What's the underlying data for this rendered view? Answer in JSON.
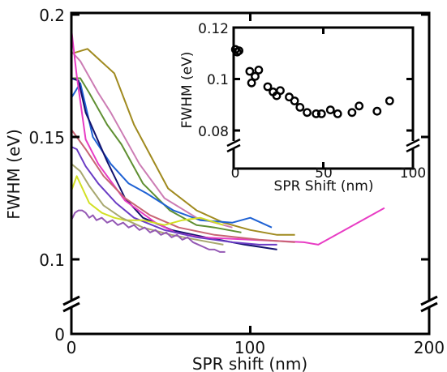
{
  "chart_data": [
    {
      "type": "line",
      "xlabel": "SPR shift (nm)",
      "ylabel": "FWHM (eV)",
      "xlim": [
        0,
        200
      ],
      "ylim": [
        0,
        0.2
      ],
      "axis_break": "y between 0 and 0.1",
      "x_ticks": [
        "0",
        "100",
        "200"
      ],
      "y_ticks": [
        "0",
        "0.1",
        "0.15",
        "0.2"
      ],
      "legend": "none",
      "grid": false,
      "series": [
        {
          "color": "#a08a1f",
          "x": [
            0,
            9,
            24,
            35,
            54,
            70,
            85,
            100,
            115,
            125
          ],
          "y": [
            0.184,
            0.186,
            0.176,
            0.155,
            0.129,
            0.12,
            0.115,
            0.112,
            0.11,
            0.11
          ]
        },
        {
          "color": "#cc7cb4",
          "x": [
            0,
            5,
            15,
            22,
            38,
            52,
            70,
            90
          ],
          "y": [
            0.185,
            0.181,
            0.168,
            0.16,
            0.139,
            0.125,
            0.117,
            0.113
          ]
        },
        {
          "color": "#5f8f32",
          "x": [
            0,
            5,
            10,
            20,
            28,
            40,
            55,
            70,
            80,
            95
          ],
          "y": [
            0.174,
            0.174,
            0.168,
            0.155,
            0.147,
            0.131,
            0.12,
            0.114,
            0.113,
            0.111
          ]
        },
        {
          "color": "#1f62d4",
          "x": [
            0,
            5,
            12,
            22,
            32,
            42,
            57,
            72,
            90,
            100,
            112
          ],
          "y": [
            0.166,
            0.172,
            0.15,
            0.139,
            0.131,
            0.127,
            0.12,
            0.116,
            0.115,
            0.117,
            0.113
          ]
        },
        {
          "color": "#12126e",
          "x": [
            0,
            4,
            8,
            20,
            30,
            40,
            56,
            75,
            97,
            115
          ],
          "y": [
            0.174,
            0.173,
            0.16,
            0.14,
            0.125,
            0.117,
            0.112,
            0.109,
            0.106,
            0.104
          ]
        },
        {
          "color": "#e83cc4",
          "x": [
            0,
            3,
            8,
            15,
            30,
            47,
            58,
            72,
            100,
            130,
            138,
            175
          ],
          "y": [
            0.194,
            0.175,
            0.149,
            0.139,
            0.124,
            0.115,
            0.111,
            0.109,
            0.108,
            0.107,
            0.106,
            0.121
          ]
        },
        {
          "color": "#c86474",
          "x": [
            0,
            8,
            18,
            30,
            44,
            60,
            80,
            105,
            125
          ],
          "y": [
            0.153,
            0.145,
            0.134,
            0.125,
            0.118,
            0.113,
            0.11,
            0.108,
            0.107
          ]
        },
        {
          "color": "#6a3cc4",
          "x": [
            0,
            3,
            8,
            15,
            25,
            35,
            52,
            70,
            90,
            105,
            115
          ],
          "y": [
            0.146,
            0.145,
            0.138,
            0.131,
            0.123,
            0.117,
            0.112,
            0.109,
            0.107,
            0.106,
            0.106
          ]
        },
        {
          "color": "#d2e024",
          "x": [
            0,
            3,
            10,
            17,
            24,
            30,
            40,
            52,
            62,
            72,
            85
          ],
          "y": [
            0.128,
            0.134,
            0.123,
            0.119,
            0.117,
            0.116,
            0.116,
            0.114,
            0.116,
            0.117,
            0.114
          ]
        },
        {
          "color": "#a8a870",
          "x": [
            0,
            5,
            10,
            18,
            28,
            40,
            56,
            70,
            85
          ],
          "y": [
            0.139,
            0.136,
            0.13,
            0.122,
            0.117,
            0.113,
            0.11,
            0.108,
            0.106
          ]
        },
        {
          "color": "#9458b4",
          "x": [
            0,
            2,
            4,
            6,
            8,
            10,
            12,
            14,
            17,
            20,
            23,
            26,
            29,
            32,
            35,
            38,
            41,
            44,
            47,
            50,
            53,
            56,
            59,
            62,
            65,
            68,
            71,
            74,
            77,
            80,
            83,
            86
          ],
          "y": [
            0.116,
            0.119,
            0.12,
            0.12,
            0.119,
            0.117,
            0.118,
            0.116,
            0.117,
            0.115,
            0.116,
            0.114,
            0.115,
            0.113,
            0.114,
            0.112,
            0.113,
            0.111,
            0.112,
            0.11,
            0.111,
            0.109,
            0.11,
            0.108,
            0.109,
            0.107,
            0.106,
            0.105,
            0.104,
            0.104,
            0.103,
            0.103
          ]
        }
      ]
    },
    {
      "type": "scatter",
      "xlabel": "SPR Shift (nm)",
      "ylabel": "FWHM (eV)",
      "xlim": [
        0,
        100
      ],
      "ylim": [
        0.075,
        0.12
      ],
      "axis_break": "y near bottom",
      "x_ticks": [
        "0",
        "50",
        "100"
      ],
      "y_ticks": [
        "0.08",
        "0.1",
        "0.12"
      ],
      "legend": "none",
      "grid": false,
      "marker": "open-circle",
      "color": "#000000",
      "x": [
        1,
        2,
        3,
        9,
        10,
        12,
        14,
        19,
        22,
        24,
        26,
        31,
        34,
        37,
        41,
        46,
        49,
        54,
        58,
        66,
        70,
        80,
        87
      ],
      "y": [
        0.1115,
        0.1105,
        0.111,
        0.103,
        0.0985,
        0.101,
        0.1035,
        0.097,
        0.095,
        0.0935,
        0.0955,
        0.093,
        0.0915,
        0.089,
        0.087,
        0.0865,
        0.0865,
        0.088,
        0.0865,
        0.087,
        0.0895,
        0.0875,
        0.0915
      ]
    }
  ]
}
